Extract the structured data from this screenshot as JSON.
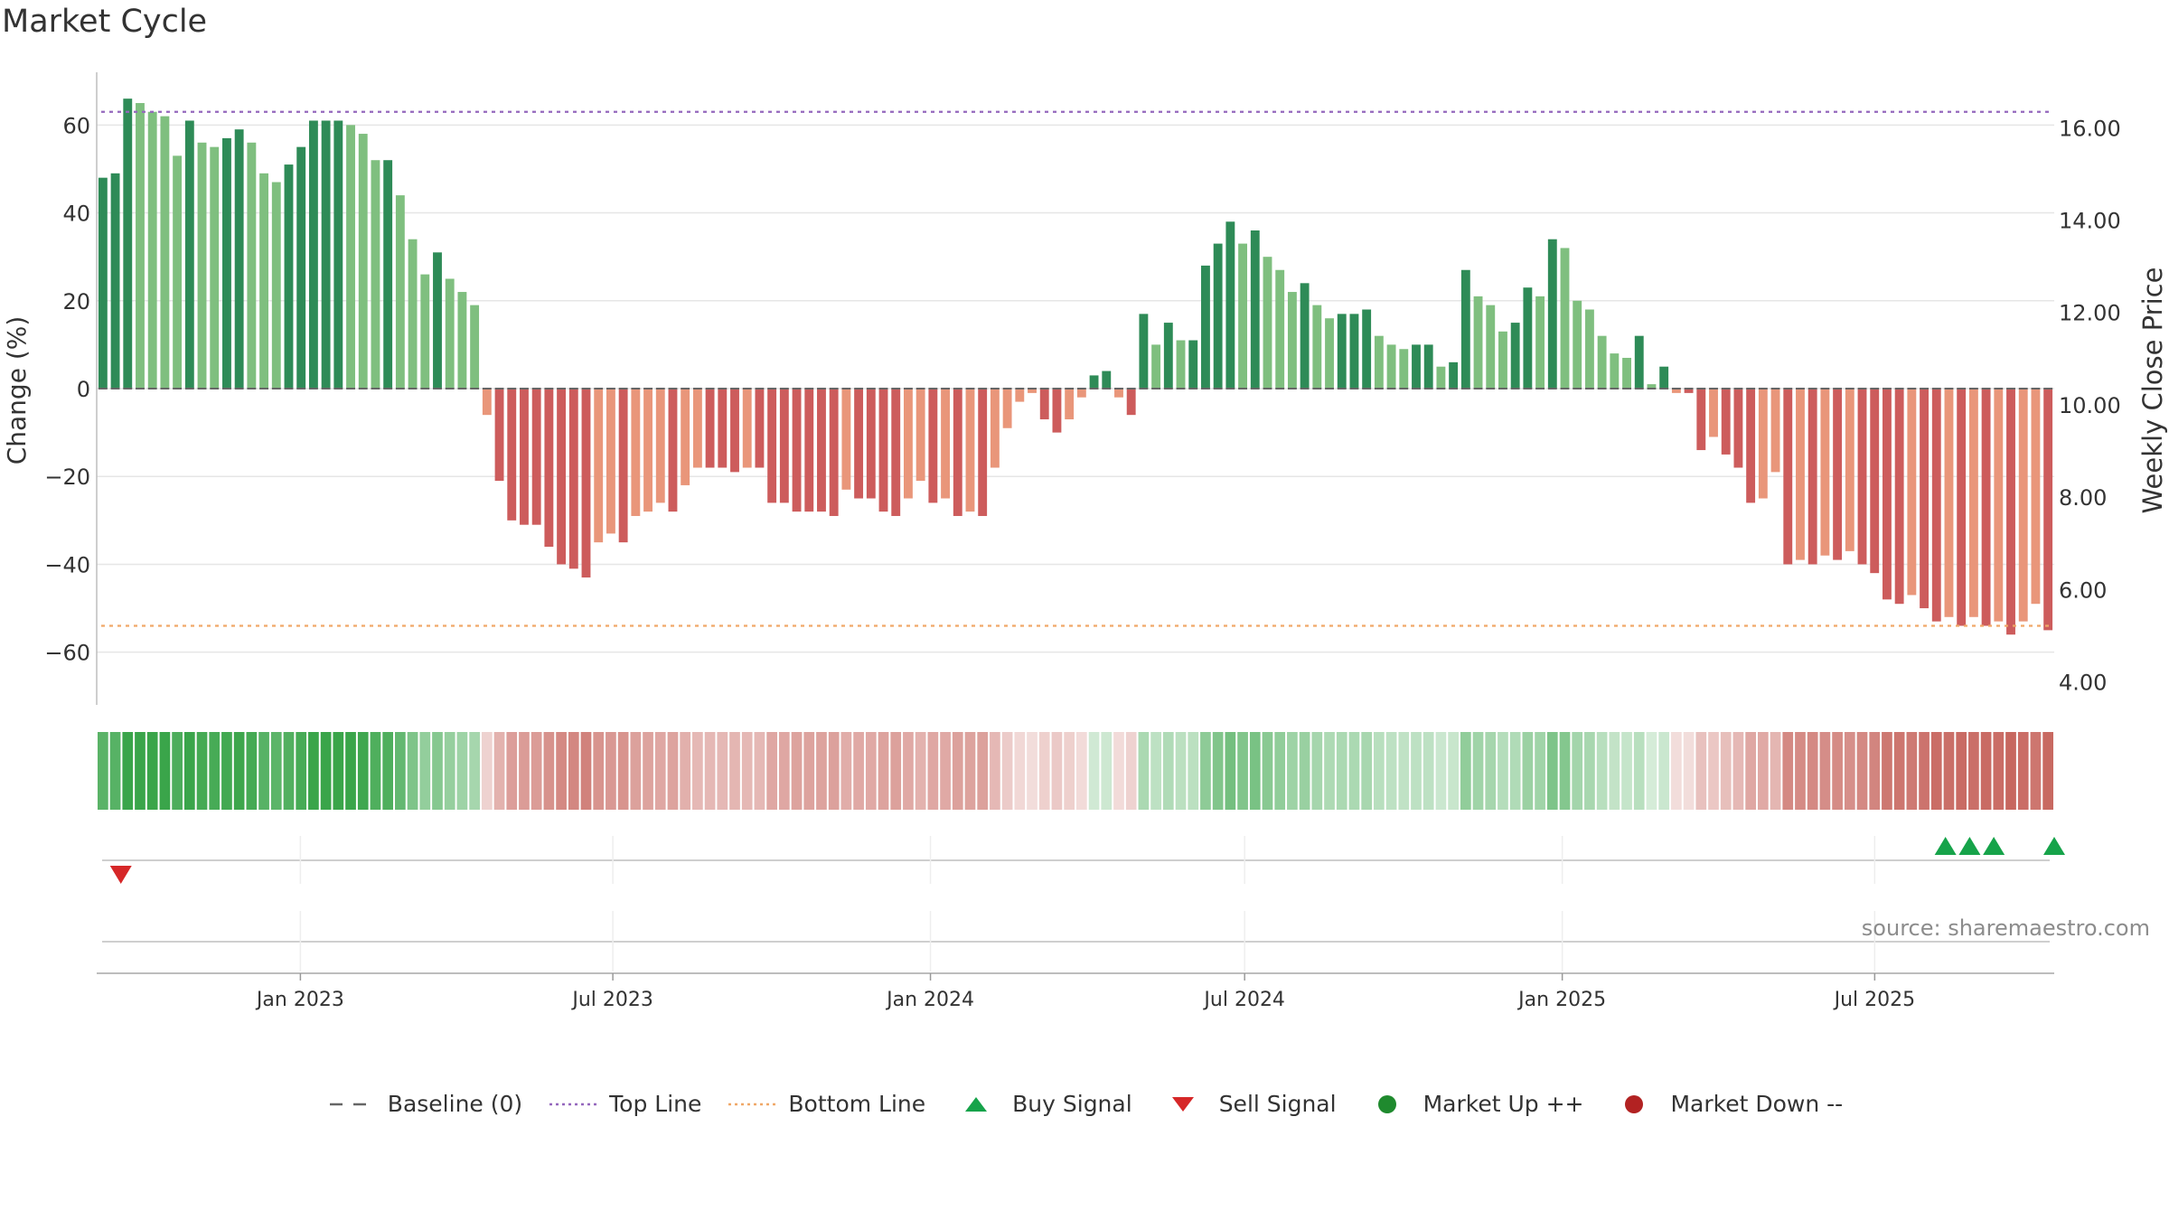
{
  "title": "Market Cycle",
  "source": "source: sharemaestro.com",
  "legend": [
    {
      "label": "Baseline (0)",
      "kind": "dash",
      "color": "#666666"
    },
    {
      "label": "Top Line",
      "kind": "dot",
      "color": "#9467bd"
    },
    {
      "label": "Bottom Line",
      "kind": "dot",
      "color": "#f0a868"
    },
    {
      "label": "Buy Signal",
      "kind": "triangle-up",
      "color": "#16a34a"
    },
    {
      "label": "Sell Signal",
      "kind": "triangle-down",
      "color": "#d62728"
    },
    {
      "label": "Market Up ++",
      "kind": "circle",
      "color": "#1f8a2e"
    },
    {
      "label": "Market Down --",
      "kind": "circle",
      "color": "#b22222"
    }
  ],
  "colors": {
    "dark_green": "#2e8b57",
    "light_green": "#7fbf7f",
    "dark_red": "#cd5c5c",
    "light_red": "#e9967a",
    "top_line": "#9467bd",
    "bottom_line": "#f0a868",
    "buy": "#16a34a",
    "sell": "#d62728"
  },
  "chart_data": {
    "type": "bar",
    "ylabel_left": "Change (%)",
    "ylabel_right": "Weekly Close Price",
    "ylim": [
      -72,
      72
    ],
    "yticks": [
      60,
      40,
      20,
      0,
      -20,
      -40,
      -60
    ],
    "ytick_labels": [
      "60",
      "40",
      "20",
      "0",
      "−20",
      "−40",
      "−60"
    ],
    "y2lim": [
      3.5,
      17.2
    ],
    "y2ticks": [
      16,
      14,
      12,
      10,
      8,
      6,
      4
    ],
    "y2tick_labels": [
      "16.00",
      "14.00",
      "12.00",
      "10.00",
      "8.00",
      "6.00",
      "4.00"
    ],
    "top_line": 63,
    "bottom_line": -54,
    "baseline": 0,
    "x_start": "2022-09-05",
    "x_end": "2025-10-13",
    "x_ticks": [
      {
        "date": "2023-01-01",
        "label": "Jan 2023"
      },
      {
        "date": "2023-07-01",
        "label": "Jul 2023"
      },
      {
        "date": "2024-01-01",
        "label": "Jan 2024"
      },
      {
        "date": "2024-07-01",
        "label": "Jul 2024"
      },
      {
        "date": "2025-01-01",
        "label": "Jan 2025"
      },
      {
        "date": "2025-07-01",
        "label": "Jul 2025"
      }
    ],
    "weekly_values": [
      48,
      49,
      66,
      65,
      63,
      62,
      53,
      61,
      56,
      55,
      57,
      59,
      56,
      49,
      47,
      51,
      55,
      61,
      61,
      61,
      60,
      58,
      52,
      52,
      44,
      34,
      26,
      31,
      25,
      22,
      19,
      -6,
      -21,
      -30,
      -31,
      -31,
      -36,
      -40,
      -41,
      -43,
      -35,
      -33,
      -35,
      -29,
      -28,
      -26,
      -28,
      -22,
      -18,
      -18,
      -18,
      -19,
      -18,
      -18,
      -26,
      -26,
      -28,
      -28,
      -28,
      -29,
      -23,
      -25,
      -25,
      -28,
      -29,
      -25,
      -21,
      -26,
      -25,
      -29,
      -28,
      -29,
      -18,
      -9,
      -3,
      -1,
      -7,
      -10,
      -7,
      -2,
      3,
      4,
      -2,
      -6,
      17,
      10,
      15,
      11,
      11,
      28,
      33,
      38,
      33,
      36,
      30,
      27,
      22,
      24,
      19,
      16,
      17,
      17,
      18,
      12,
      10,
      9,
      10,
      10,
      5,
      6,
      27,
      21,
      19,
      13,
      15,
      23,
      21,
      34,
      32,
      20,
      18,
      12,
      8,
      7,
      12,
      1,
      5,
      -1,
      -1,
      -14,
      -11,
      -15,
      -18,
      -26,
      -25,
      -19,
      -40,
      -39,
      -40,
      -38,
      -39,
      -37,
      -40,
      -42,
      -48,
      -49,
      -47,
      -50,
      -53,
      -52,
      -54,
      -52,
      -54,
      -53,
      -56,
      -53,
      -49,
      -55
    ],
    "buy_signals": [
      "2025-08-11",
      "2025-08-25",
      "2025-09-08",
      "2025-10-13"
    ],
    "sell_signals": [
      "2022-09-19"
    ]
  }
}
